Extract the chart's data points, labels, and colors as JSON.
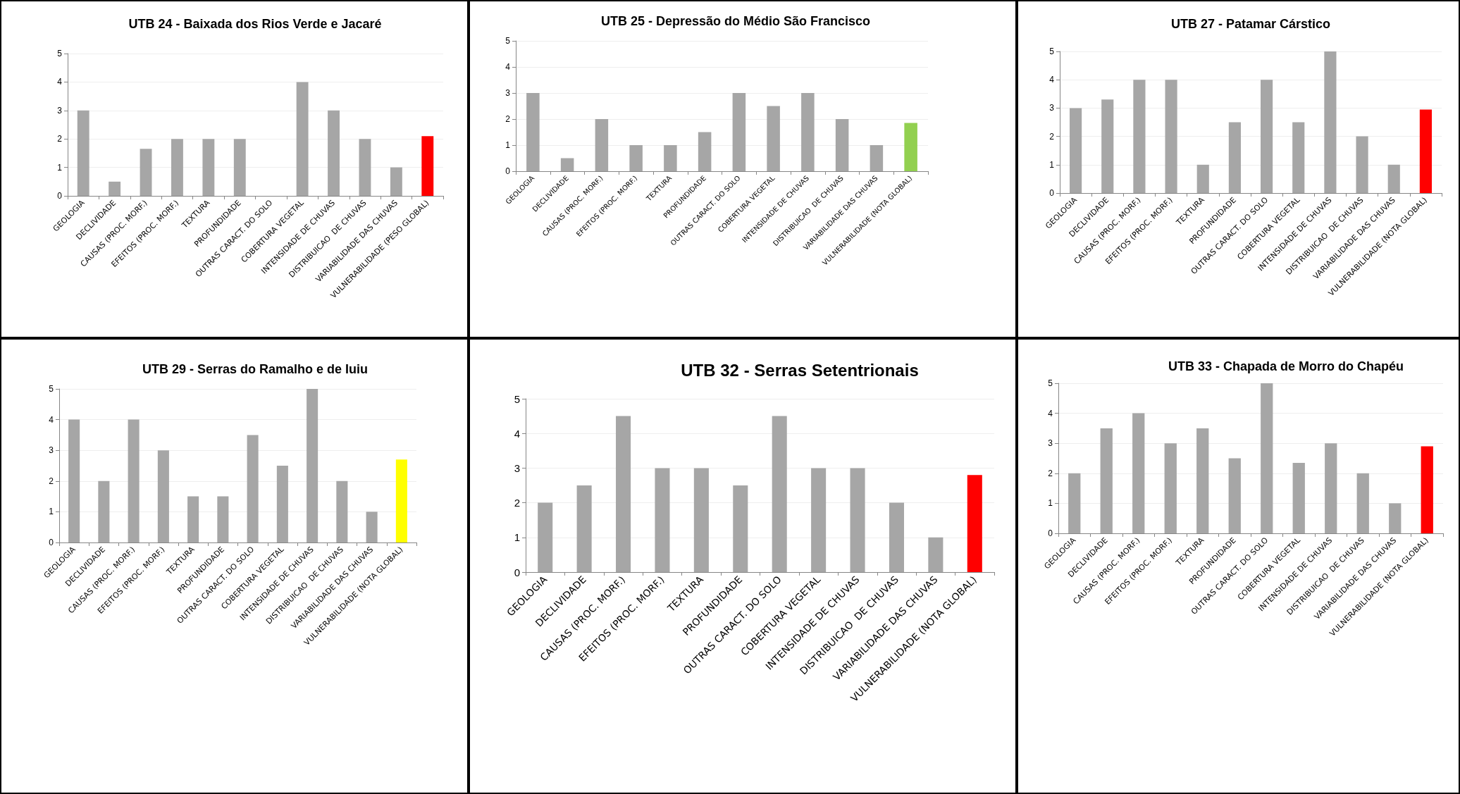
{
  "chart_data": [
    {
      "type": "bar",
      "title": "UTB 24 - Baixada dos Rios Verde e Jacaré",
      "categories": [
        "GEOLOGIA",
        "DECLIVIDADE",
        "CAUSAS (PROC. MORF.)",
        "EFEITOS (PROC. MORF.)",
        "TEXTURA",
        "PROFUNDIDADE",
        "OUTRAS CARACT. DO SOLO",
        "COBERTURA VEGETAL",
        "INTENSIDADE DE CHUVAS",
        "DISTRIBUICAO  DE CHUVAS",
        "VARIABILIDADE DAS CHUVAS",
        "VULNERABILIDADE (PESO GLOBAL)"
      ],
      "values": [
        3,
        0.5,
        1.65,
        2,
        2,
        2,
        null,
        4,
        3,
        2,
        1,
        2.1
      ],
      "colors": [
        "#a6a6a6",
        "#a6a6a6",
        "#a6a6a6",
        "#a6a6a6",
        "#a6a6a6",
        "#a6a6a6",
        "#a6a6a6",
        "#a6a6a6",
        "#a6a6a6",
        "#a6a6a6",
        "#a6a6a6",
        "#ff0000"
      ],
      "ylim": [
        0,
        5
      ],
      "yticks": [
        0,
        1,
        2,
        3,
        4,
        5
      ],
      "grid": "y"
    },
    {
      "type": "bar",
      "title": "UTB 25 - Depressão do Médio São Francisco",
      "categories": [
        "GEOLOGIA",
        "DECLIVIDADE",
        "CAUSAS (PROC. MORF.)",
        "EFEITOS (PROC. MORF.)",
        "TEXTURA",
        "PROFUNDIDADE",
        "OUTRAS CARACT. DO SOLO",
        "COBERTURA VEGETAL",
        "INTENSIDADE DE CHUVAS",
        "DISTRIBUICAO  DE CHUVAS",
        "VARIABILIDADE DAS CHUVAS",
        "VULNERABILIDADE (NOTA GLOBAL)"
      ],
      "values": [
        3,
        0.5,
        2,
        1,
        1,
        1.5,
        3,
        2.5,
        3,
        2,
        1,
        1.85
      ],
      "colors": [
        "#a6a6a6",
        "#a6a6a6",
        "#a6a6a6",
        "#a6a6a6",
        "#a6a6a6",
        "#a6a6a6",
        "#a6a6a6",
        "#a6a6a6",
        "#a6a6a6",
        "#a6a6a6",
        "#a6a6a6",
        "#92d050"
      ],
      "ylim": [
        0,
        5
      ],
      "yticks": [
        0,
        1,
        2,
        3,
        4,
        5
      ],
      "grid": "y"
    },
    {
      "type": "bar",
      "title": "UTB 27 - Patamar Cárstico",
      "categories": [
        "GEOLOGIA",
        "DECLIVIDADE",
        "CAUSAS (PROC. MORF.)",
        "EFEITOS (PROC. MORF.)",
        "TEXTURA",
        "PROFUNDIDADE",
        "OUTRAS CARACT. DO SOLO",
        "COBERTURA VEGETAL",
        "INTENSIDADE DE CHUVAS",
        "DISTRIBUICAO  DE CHUVAS",
        "VARIABILIDADE DAS CHUVAS",
        "VULNERABILIDADE (NOTA GLOBAL)"
      ],
      "values": [
        3,
        3.3,
        4,
        4,
        1,
        2.5,
        4,
        2.5,
        5,
        2,
        1,
        2.95
      ],
      "colors": [
        "#a6a6a6",
        "#a6a6a6",
        "#a6a6a6",
        "#a6a6a6",
        "#a6a6a6",
        "#a6a6a6",
        "#a6a6a6",
        "#a6a6a6",
        "#a6a6a6",
        "#a6a6a6",
        "#a6a6a6",
        "#ff0000"
      ],
      "ylim": [
        0,
        5
      ],
      "yticks": [
        0,
        1,
        2,
        3,
        4,
        5
      ],
      "grid": "y"
    },
    {
      "type": "bar",
      "title": "UTB 29 - Serras do Ramalho e de Iuiu",
      "categories": [
        "GEOLOGIA",
        "DECLIVIDADE",
        "CAUSAS (PROC. MORF.)",
        "EFEITOS (PROC. MORF.)",
        "TEXTURA",
        "PROFUNDIDADE",
        "OUTRAS CARACT. DO SOLO",
        "COBERTURA VEGETAL",
        "INTENSIDADE DE CHUVAS",
        "DISTRIBUICAO  DE CHUVAS",
        "VARIABILIDADE DAS CHUVAS",
        "VULNERABILIDADE (NOTA GLOBAL)"
      ],
      "values": [
        4,
        2,
        4,
        3,
        1.5,
        1.5,
        3.5,
        2.5,
        5,
        2,
        1,
        2.7
      ],
      "colors": [
        "#a6a6a6",
        "#a6a6a6",
        "#a6a6a6",
        "#a6a6a6",
        "#a6a6a6",
        "#a6a6a6",
        "#a6a6a6",
        "#a6a6a6",
        "#a6a6a6",
        "#a6a6a6",
        "#a6a6a6",
        "#ffff00"
      ],
      "ylim": [
        0,
        5
      ],
      "yticks": [
        0,
        1,
        2,
        3,
        4,
        5
      ],
      "grid": "y"
    },
    {
      "type": "bar",
      "title": "UTB 32 - Serras Setentrionais",
      "categories": [
        "GEOLOGIA",
        "DECLIVIDADE",
        "CAUSAS (PROC. MORF.)",
        "EFEITOS (PROC. MORF.)",
        "TEXTURA",
        "PROFUNDIDADE",
        "OUTRAS CARACT. DO SOLO",
        "COBERTURA VEGETAL",
        "INTENSIDADE DE CHUVAS",
        "DISTRIBUICAO  DE CHUVAS",
        "VARIABILIDADE DAS CHUVAS",
        "VULNERABILIDADE (NOTA GLOBAL)"
      ],
      "values": [
        2,
        2.5,
        4.5,
        3,
        3,
        2.5,
        4.5,
        3,
        3,
        2,
        1,
        2.8
      ],
      "colors": [
        "#a6a6a6",
        "#a6a6a6",
        "#a6a6a6",
        "#a6a6a6",
        "#a6a6a6",
        "#a6a6a6",
        "#a6a6a6",
        "#a6a6a6",
        "#a6a6a6",
        "#a6a6a6",
        "#a6a6a6",
        "#ff0000"
      ],
      "ylim": [
        0,
        5
      ],
      "yticks": [
        0,
        1,
        2,
        3,
        4,
        5
      ],
      "grid": "y"
    },
    {
      "type": "bar",
      "title": "UTB 33 - Chapada de Morro do Chapéu",
      "categories": [
        "GEOLOGIA",
        "DECLIVIDADE",
        "CAUSAS (PROC. MORF.)",
        "EFEITOS (PROC. MORF.)",
        "TEXTURA",
        "PROFUNDIDADE",
        "OUTRAS CARACT. DO SOLO",
        "COBERTURA VEGETAL",
        "INTENSIDADE DE CHUVAS",
        "DISTRIBUICAO  DE CHUVAS",
        "VARIABILIDADE DAS CHUVAS",
        "VULNERABILIDADE (NOTA GLOBAL)"
      ],
      "values": [
        2,
        3.5,
        4,
        3,
        3.5,
        2.5,
        5,
        2.35,
        3,
        2,
        1,
        2.9
      ],
      "colors": [
        "#a6a6a6",
        "#a6a6a6",
        "#a6a6a6",
        "#a6a6a6",
        "#a6a6a6",
        "#a6a6a6",
        "#a6a6a6",
        "#a6a6a6",
        "#a6a6a6",
        "#a6a6a6",
        "#a6a6a6",
        "#ff0000"
      ],
      "ylim": [
        0,
        5
      ],
      "yticks": [
        0,
        1,
        2,
        3,
        4,
        5
      ],
      "grid": "y"
    }
  ]
}
